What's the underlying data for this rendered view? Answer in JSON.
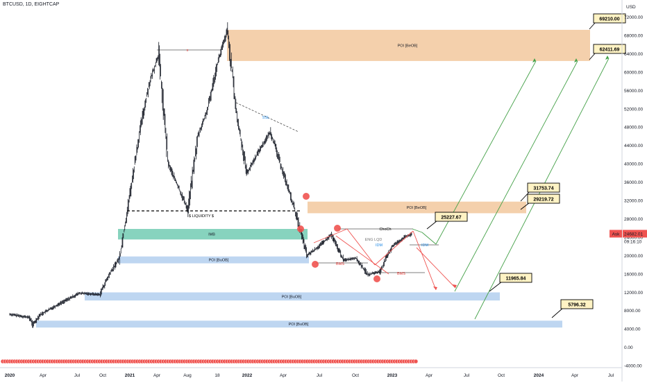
{
  "header": {
    "symbol": "BTCUSD, 1D, EIGHTCAP",
    "currency": "USD"
  },
  "ask": {
    "label": "Ask",
    "price": "24682.01",
    "countdown": "09:16:10"
  },
  "chart_data": {
    "type": "line",
    "x_ticks": [
      "2020",
      "Apr",
      "Jul",
      "Oct",
      "2021",
      "Apr",
      "Aug",
      "18",
      "2022",
      "Apr",
      "Jul",
      "Oct",
      "2023",
      "Apr",
      "Jul",
      "Oct",
      "2024",
      "Apr",
      "Jul"
    ],
    "y_ticks": [
      "72000.00",
      "68000.00",
      "64000.00",
      "60000.00",
      "56000.00",
      "52000.00",
      "48000.00",
      "44000.00",
      "40000.00",
      "36000.00",
      "32000.00",
      "28000.00",
      "24000.00",
      "20000.00",
      "16000.00",
      "12000.00",
      "8000.00",
      "4000.00",
      "0.00",
      "-4000.00"
    ],
    "ylim": [
      -5200,
      74500
    ],
    "price_path": [
      [
        "2020-01",
        7200
      ],
      [
        "2020-03",
        6500
      ],
      [
        "2020-03-12",
        4900
      ],
      [
        "2020-04",
        7000
      ],
      [
        "2020-06",
        9500
      ],
      [
        "2020-08",
        11800
      ],
      [
        "2020-10",
        11500
      ],
      [
        "2020-11",
        16000
      ],
      [
        "2020-12",
        19500
      ],
      [
        "2021-01",
        33000
      ],
      [
        "2021-02",
        47000
      ],
      [
        "2021-03",
        57000
      ],
      [
        "2021-04",
        64000
      ],
      [
        "2021-05",
        40000
      ],
      [
        "2021-07",
        30000
      ],
      [
        "2021-08",
        46000
      ],
      [
        "2021-09",
        52000
      ],
      [
        "2021-10",
        62000
      ],
      [
        "2021-11",
        69000
      ],
      [
        "2021-12",
        50000
      ],
      [
        "2022-01",
        38000
      ],
      [
        "2022-02",
        43000
      ],
      [
        "2022-03",
        47000
      ],
      [
        "2022-05",
        30000
      ],
      [
        "2022-06",
        20000
      ],
      [
        "2022-07",
        22000
      ],
      [
        "2022-08",
        24500
      ],
      [
        "2022-09",
        19000
      ],
      [
        "2022-10",
        19500
      ],
      [
        "2022-11",
        15800
      ],
      [
        "2022-12",
        16500
      ],
      [
        "2023-01",
        22000
      ],
      [
        "2023-02",
        24000
      ],
      [
        "2023-02-20",
        24682
      ]
    ],
    "zones": [
      {
        "label": "POI [BeOB]",
        "top": 69210,
        "bottom": 62411.69,
        "color": "#f0c090"
      },
      {
        "label": "POI [BeOB]",
        "top": 31753.74,
        "bottom": 29219.72,
        "color": "#f0c090"
      },
      {
        "label": "IMB",
        "top": 25800,
        "bottom": 23500,
        "color": "#5fc4a8"
      },
      {
        "label": "POI [BuOB]",
        "top": 19800,
        "bottom": 18300,
        "color": "#a8c8ec"
      },
      {
        "label": "POI [BuOB]",
        "top": 11965.84,
        "bottom": 10200,
        "color": "#a8c8ec"
      },
      {
        "label": "POI [BuOB]",
        "top": 5796.32,
        "bottom": 4300,
        "color": "#a8c8ec"
      }
    ],
    "price_callouts": [
      "69210.00",
      "62411.69",
      "31753.74",
      "29219.72",
      "25227.67",
      "11965.84",
      "5796.32"
    ],
    "annotations": [
      "$ LIQUIDITY $",
      "x",
      "SSL",
      "ChoCh",
      "ENG LQD",
      "IDM",
      "BMS",
      "BMS",
      "IDM",
      "BMS"
    ],
    "grid": false
  }
}
